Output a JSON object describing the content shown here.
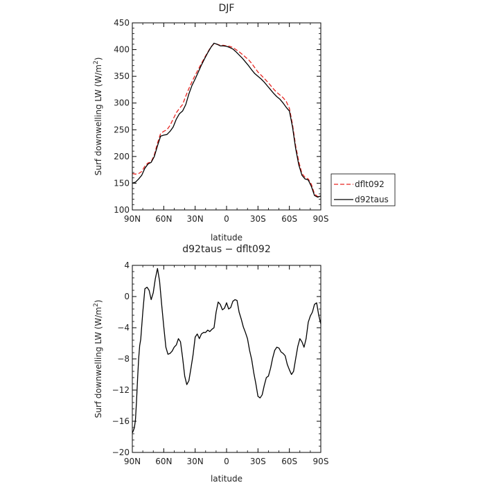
{
  "chart_data": [
    {
      "type": "line",
      "title": "DJF",
      "xlabel": "latitude",
      "ylabel": "Surf downwelling LW (W/m²)",
      "ylabel_main": "Surf downwelling LW (W/m",
      "ylabel_sup": "2",
      "ylabel_end": ")",
      "xlim": [
        90,
        -90
      ],
      "ylim": [
        100,
        450
      ],
      "xticks": [
        90,
        60,
        30,
        0,
        -30,
        -60,
        -90
      ],
      "xtick_labels": [
        "90N",
        "60N",
        "30N",
        "0",
        "30S",
        "60S",
        "90S"
      ],
      "yticks": [
        100,
        150,
        200,
        250,
        300,
        350,
        400,
        450
      ],
      "ytick_labels": [
        "100",
        "150",
        "200",
        "250",
        "300",
        "350",
        "400",
        "450"
      ],
      "legend_position": "right",
      "series": [
        {
          "name": "dflt092",
          "color": "#e8231f",
          "dash": "6,3",
          "x": [
            90,
            87,
            84,
            81,
            78,
            75,
            72,
            69,
            66,
            63,
            60,
            57,
            54,
            51,
            48,
            45,
            42,
            39,
            36,
            33,
            30,
            27,
            24,
            21,
            18,
            15,
            12,
            9,
            6,
            3,
            0,
            -3,
            -6,
            -9,
            -12,
            -15,
            -18,
            -21,
            -24,
            -27,
            -30,
            -33,
            -36,
            -39,
            -42,
            -45,
            -48,
            -51,
            -54,
            -57,
            -60,
            -63,
            -66,
            -69,
            -72,
            -75,
            -78,
            -81,
            -84,
            -87,
            -90
          ],
          "y": [
            168,
            167,
            168,
            172,
            182,
            188,
            190,
            203,
            225,
            243,
            247,
            250,
            258,
            270,
            282,
            290,
            297,
            313,
            327,
            340,
            352,
            363,
            374,
            385,
            395,
            405,
            411,
            410,
            408,
            408,
            407,
            406,
            404,
            400,
            396,
            391,
            386,
            381,
            374,
            366,
            358,
            352,
            346,
            340,
            333,
            326,
            320,
            315,
            310,
            303,
            290,
            260,
            220,
            190,
            168,
            161,
            158,
            148,
            130,
            125,
            126
          ]
        },
        {
          "name": "d92taus",
          "color": "#000000",
          "dash": "",
          "x": [
            90,
            87,
            84,
            81,
            78,
            75,
            72,
            69,
            66,
            63,
            60,
            57,
            54,
            51,
            48,
            45,
            42,
            39,
            36,
            33,
            30,
            27,
            24,
            21,
            18,
            15,
            12,
            9,
            6,
            3,
            0,
            -3,
            -6,
            -9,
            -12,
            -15,
            -18,
            -21,
            -24,
            -27,
            -30,
            -33,
            -36,
            -39,
            -42,
            -45,
            -48,
            -51,
            -54,
            -57,
            -60,
            -63,
            -66,
            -69,
            -72,
            -75,
            -78,
            -81,
            -84,
            -87,
            -90
          ],
          "y": [
            150,
            152,
            158,
            165,
            178,
            186,
            189,
            200,
            220,
            238,
            240,
            241,
            247,
            255,
            270,
            280,
            285,
            297,
            317,
            333,
            345,
            358,
            371,
            383,
            394,
            404,
            412,
            410,
            407,
            407,
            406,
            404,
            401,
            396,
            390,
            384,
            377,
            370,
            362,
            355,
            350,
            345,
            339,
            332,
            325,
            318,
            312,
            307,
            300,
            292,
            285,
            255,
            215,
            184,
            165,
            158,
            156,
            144,
            127,
            124,
            126
          ]
        }
      ]
    },
    {
      "type": "line",
      "title": "d92taus − dflt092",
      "xlabel": "latitude",
      "ylabel": "Surf downwelling LW (W/m²)",
      "ylabel_main": "Surf downwelling LW (W/m",
      "ylabel_sup": "2",
      "ylabel_end": ")",
      "xlim": [
        90,
        -90
      ],
      "ylim": [
        -20,
        4
      ],
      "xticks": [
        90,
        60,
        30,
        0,
        -30,
        -60,
        -90
      ],
      "xtick_labels": [
        "90N",
        "60N",
        "30N",
        "0",
        "30S",
        "60S",
        "90S"
      ],
      "yticks": [
        -20,
        -16,
        -12,
        -8,
        -4,
        0,
        4
      ],
      "ytick_labels": [
        "−20",
        "−16",
        "−12",
        "−8",
        "−4",
        "0",
        "4"
      ],
      "series": [
        {
          "name": "",
          "color": "#000000",
          "dash": "",
          "x": [
            90,
            89,
            88,
            87,
            86,
            85,
            84,
            83,
            82,
            80,
            78,
            76,
            74,
            72,
            70,
            68,
            66,
            64,
            62,
            60,
            58,
            56,
            54,
            52,
            50,
            48,
            46,
            44,
            42,
            40,
            38,
            36,
            34,
            32,
            30,
            28,
            26,
            24,
            22,
            20,
            18,
            16,
            14,
            12,
            10,
            8,
            6,
            4,
            2,
            0,
            -2,
            -4,
            -6,
            -8,
            -10,
            -12,
            -14,
            -16,
            -18,
            -20,
            -22,
            -24,
            -26,
            -28,
            -30,
            -32,
            -34,
            -36,
            -38,
            -40,
            -42,
            -44,
            -46,
            -48,
            -50,
            -52,
            -54,
            -56,
            -58,
            -60,
            -62,
            -64,
            -66,
            -68,
            -70,
            -72,
            -74,
            -76,
            -78,
            -80,
            -82,
            -84,
            -86,
            -88,
            -90
          ],
          "y": [
            -17.5,
            -17.2,
            -16.8,
            -15.8,
            -13.5,
            -10.5,
            -8.0,
            -6.3,
            -5.5,
            -2.0,
            1.0,
            1.2,
            0.8,
            -0.4,
            0.5,
            2.3,
            3.6,
            2.0,
            -1.0,
            -3.8,
            -6.5,
            -7.4,
            -7.3,
            -7.0,
            -6.5,
            -6.2,
            -5.4,
            -5.8,
            -7.8,
            -10.2,
            -11.3,
            -10.8,
            -9.2,
            -7.5,
            -5.2,
            -4.8,
            -5.4,
            -4.8,
            -4.6,
            -4.6,
            -4.3,
            -4.5,
            -4.2,
            -4.0,
            -2.0,
            -0.7,
            -1.0,
            -1.7,
            -1.5,
            -0.8,
            -1.6,
            -1.4,
            -0.6,
            -0.4,
            -0.5,
            -2.0,
            -2.9,
            -3.9,
            -4.6,
            -5.4,
            -6.9,
            -8.1,
            -9.8,
            -11.2,
            -12.8,
            -13.0,
            -12.6,
            -11.4,
            -10.4,
            -10.2,
            -9.2,
            -7.9,
            -6.9,
            -6.5,
            -6.6,
            -7.1,
            -7.3,
            -7.6,
            -8.7,
            -9.4,
            -10.0,
            -9.6,
            -8.0,
            -6.4,
            -5.4,
            -5.8,
            -6.5,
            -5.4,
            -3.3,
            -2.5,
            -2.0,
            -1.0,
            -0.8,
            -2.4,
            -3.5
          ]
        }
      ]
    }
  ],
  "legend": {
    "items": [
      {
        "label": "dflt092",
        "color": "#e8231f",
        "dash": "6,3"
      },
      {
        "label": "d92taus",
        "color": "#000000",
        "dash": ""
      }
    ]
  }
}
